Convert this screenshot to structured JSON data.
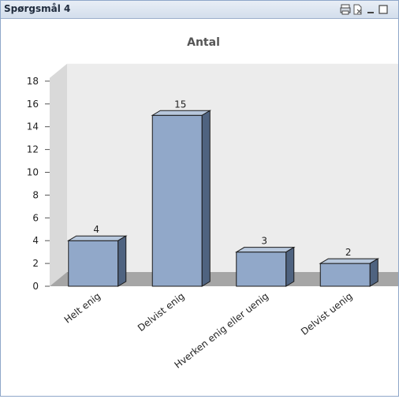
{
  "window": {
    "title": "Spørgsmål 4",
    "icons": [
      "print-icon",
      "export-excel-icon",
      "minimize-icon",
      "restore-icon"
    ]
  },
  "chart_data": {
    "type": "bar",
    "title": "Antal",
    "categories": [
      "Helt enig",
      "Delvist enig",
      "Hverken enig eller uenig",
      "Delvist uenig"
    ],
    "values": [
      4,
      15,
      3,
      2
    ],
    "ylim": [
      0,
      18
    ],
    "yticks": [
      0,
      2,
      4,
      6,
      8,
      10,
      12,
      14,
      16,
      18
    ],
    "bar_color": "#91a8c9",
    "bar_side_color": "#4f6380",
    "bar_top_color": "#b7c7dc",
    "grid": false,
    "style": "3d"
  }
}
